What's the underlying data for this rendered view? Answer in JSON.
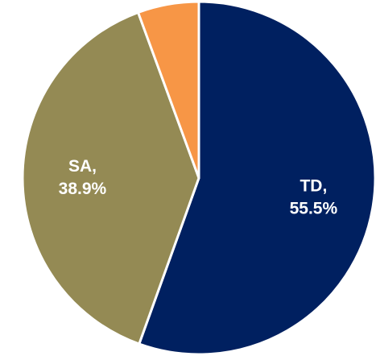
{
  "chart_data": {
    "type": "pie",
    "categories": [
      "TD,",
      "SA,",
      null
    ],
    "values": [
      55.5,
      38.9,
      5.6
    ],
    "value_labels": [
      "55.5%",
      "38.9%",
      null
    ],
    "colors": [
      "#002060",
      "#948a54",
      "#f79646"
    ]
  }
}
